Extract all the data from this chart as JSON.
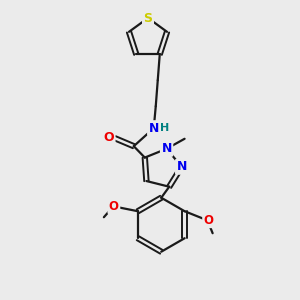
{
  "background_color": "#ebebeb",
  "bond_color": "#1a1a1a",
  "atom_colors": {
    "S": "#cccc00",
    "N": "#0000ee",
    "O": "#ee0000",
    "H": "#008080",
    "C": "#1a1a1a"
  },
  "figsize": [
    3.0,
    3.0
  ],
  "dpi": 100
}
